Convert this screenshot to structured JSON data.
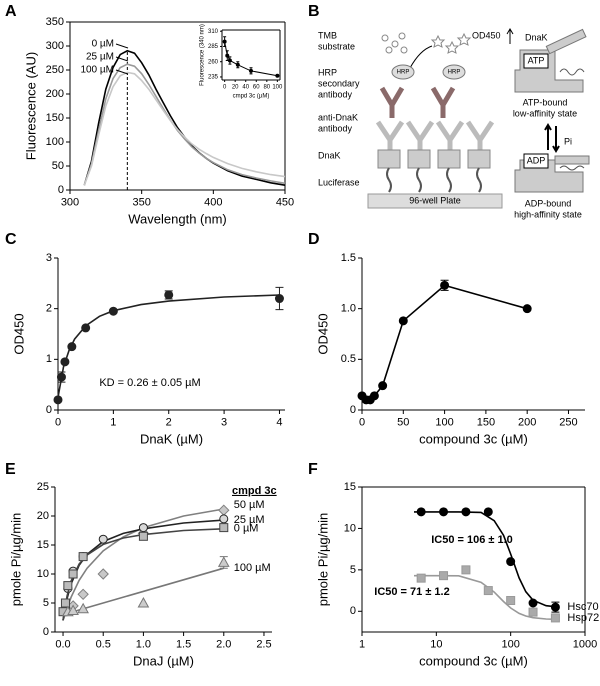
{
  "chart_data": [
    {
      "type": "line",
      "panel": "A",
      "xlabel": "Wavelength (nm)",
      "ylabel": "Fluorescence (AU)",
      "xlim": [
        300,
        450
      ],
      "ylim": [
        0,
        350
      ],
      "xticks": [
        300,
        350,
        400,
        450
      ],
      "yticks": [
        0,
        50,
        100,
        150,
        200,
        250,
        300,
        350
      ],
      "frame": true,
      "vline": 340,
      "legend": "left",
      "x": [
        310,
        315,
        320,
        325,
        330,
        335,
        340,
        345,
        350,
        355,
        360,
        365,
        370,
        375,
        380,
        385,
        390,
        395,
        400,
        410,
        420,
        430,
        440,
        450
      ],
      "series": [
        {
          "name": "0 µM",
          "color": "#000000",
          "values": [
            10,
            60,
            140,
            210,
            255,
            282,
            290,
            285,
            265,
            240,
            210,
            182,
            155,
            130,
            110,
            92,
            78,
            66,
            56,
            40,
            29,
            22,
            15,
            10
          ]
        },
        {
          "name": "25 µM",
          "color": "#999999",
          "values": [
            10,
            55,
            125,
            190,
            232,
            255,
            262,
            258,
            242,
            220,
            195,
            170,
            146,
            124,
            106,
            90,
            77,
            66,
            57,
            42,
            32,
            25,
            19,
            14
          ]
        },
        {
          "name": "100 µM",
          "color": "#c8c8c8",
          "values": [
            10,
            50,
            115,
            175,
            215,
            238,
            245,
            242,
            228,
            210,
            188,
            166,
            145,
            126,
            110,
            96,
            85,
            76,
            68,
            55,
            45,
            38,
            32,
            28
          ]
        }
      ],
      "inset": {
        "type": "scatter",
        "xlabel": "cmpd 3c (µM)",
        "ylabel": "Fluorescence (340 nm)",
        "xlim": [
          -5,
          105
        ],
        "ylim": [
          230,
          312
        ],
        "xticks": [
          0,
          20,
          40,
          60,
          80,
          100
        ],
        "yticks": [
          235,
          260,
          285,
          310
        ],
        "frame": true,
        "series": [
          {
            "color": "#000000",
            "marker": "circle",
            "line": true,
            "x": [
              0,
              5,
              10,
              25,
              50,
              100
            ],
            "values": [
              293,
              270,
              262,
              255,
              245,
              237
            ],
            "errors": [
              8,
              8,
              6,
              5,
              5,
              null
            ]
          }
        ]
      }
    },
    {
      "type": "scatter",
      "panel": "C",
      "xlabel": "DnaK (µM)",
      "ylabel": "OD450",
      "xlim": [
        0,
        4.1
      ],
      "ylim": [
        0,
        3
      ],
      "xticks": [
        0,
        1,
        2,
        3,
        4
      ],
      "yticks": [
        0,
        1,
        2,
        3
      ],
      "annotations": [
        {
          "text": "KD = 0.26 ± 0.05 µM",
          "color": "#000000"
        }
      ],
      "series": [
        {
          "color": "#222222",
          "marker": "circle",
          "x": [
            0,
            0.0625,
            0.125,
            0.25,
            0.5,
            1,
            2,
            4
          ],
          "values": [
            0.2,
            0.65,
            0.95,
            1.25,
            1.62,
            1.95,
            2.27,
            2.2
          ],
          "errors": [
            null,
            0.1,
            null,
            null,
            null,
            null,
            0.08,
            0.22
          ],
          "fit": {
            "x": [
              0,
              0.1,
              0.2,
              0.3,
              0.5,
              0.75,
              1,
              1.5,
              2,
              3,
              4
            ],
            "y": [
              0.25,
              0.85,
              1.18,
              1.4,
              1.66,
              1.85,
              1.96,
              2.08,
              2.15,
              2.23,
              2.27
            ]
          }
        }
      ]
    },
    {
      "type": "scatter",
      "panel": "D",
      "xlabel": "compound 3c (µM)",
      "ylabel": "OD450",
      "xlim": [
        0,
        270
      ],
      "ylim": [
        0,
        1.5
      ],
      "xticks": [
        0,
        50,
        100,
        150,
        200,
        250
      ],
      "yticks": [
        0,
        0.5,
        {
          "value": 1,
          "label": "1.0"
        },
        1.5
      ],
      "series": [
        {
          "color": "#000000",
          "marker": "circle",
          "line": true,
          "x": [
            0,
            5,
            10,
            15,
            25,
            50,
            100,
            200
          ],
          "values": [
            0.14,
            0.1,
            0.1,
            0.14,
            0.24,
            0.88,
            1.23,
            1.0
          ],
          "errors": [
            null,
            null,
            null,
            null,
            null,
            null,
            0.05,
            null
          ]
        }
      ]
    },
    {
      "type": "scatter",
      "panel": "E",
      "xlabel": "DnaJ (µM)",
      "ylabel": "pmole Pi/µg/min",
      "xlim": [
        -0.1,
        2.6
      ],
      "ylim": [
        0,
        25
      ],
      "xticks": [
        {
          "value": 0,
          "label": "0.0"
        },
        0.5,
        {
          "value": 1,
          "label": "1.0"
        },
        1.5,
        {
          "value": 2,
          "label": "2.0"
        },
        2.5
      ],
      "yticks": [
        0,
        5,
        10,
        15,
        20,
        25
      ],
      "legend_title": "cmpd 3c",
      "legend": "end",
      "series": [
        {
          "name": "50 µM",
          "color": "#808080",
          "fill": "#c8c8c8",
          "marker": "diamond",
          "x": [
            0.125,
            0.25,
            0.5,
            1,
            2
          ],
          "values": [
            4.5,
            6.5,
            10,
            17,
            21
          ],
          "fit": {
            "x": [
              0,
              0.1,
              0.2,
              0.3,
              0.5,
              0.75,
              1,
              1.5,
              2
            ],
            "y": [
              2,
              6,
              8.9,
              11,
              14,
              16.4,
              18,
              20,
              21.2
            ]
          }
        },
        {
          "name": "25 µM",
          "color": "#222222",
          "fill": "#d8d8d8",
          "marker": "circle",
          "x": [
            0.03,
            0.06,
            0.125,
            0.25,
            0.5,
            1,
            2
          ],
          "values": [
            4,
            7.5,
            10.5,
            13,
            16,
            18,
            19.5
          ],
          "fit": {
            "x": [
              0,
              0.05,
              0.1,
              0.2,
              0.3,
              0.5,
              0.75,
              1,
              1.5,
              2
            ],
            "y": [
              2,
              5.8,
              8.3,
              11.5,
              13.4,
              15.6,
              17,
              17.8,
              18.8,
              19.3
            ]
          }
        },
        {
          "name": "0 µM",
          "color": "#444444",
          "fill": "#bbbbbb",
          "marker": "square",
          "x": [
            0,
            0.03,
            0.06,
            0.125,
            0.25,
            1,
            2
          ],
          "values": [
            3.5,
            5,
            8,
            10,
            13,
            16.5,
            18
          ],
          "fit": {
            "x": [
              0,
              0.05,
              0.1,
              0.2,
              0.3,
              0.5,
              0.75,
              1,
              1.5,
              2
            ],
            "y": [
              2,
              6.25,
              8.8,
              11.7,
              13.3,
              15.1,
              16.2,
              16.8,
              17.5,
              17.8
            ]
          }
        },
        {
          "name": "100 µM",
          "color": "#777777",
          "fill": "#cccccc",
          "marker": "triangle",
          "x": [
            0.06,
            0.125,
            0.25,
            1,
            2
          ],
          "values": [
            3.5,
            3.7,
            4,
            5,
            12
          ],
          "errors": [
            null,
            null,
            null,
            null,
            1
          ],
          "fit": {
            "x": [
              0,
              2
            ],
            "y": [
              3,
              11
            ]
          }
        }
      ]
    },
    {
      "type": "scatter",
      "panel": "F",
      "xlabel": "compound 3c (µM)",
      "ylabel": "pmole Pi/µg/min",
      "xscale": "log",
      "xlim": [
        1,
        1000
      ],
      "ylim": [
        -2.5,
        15
      ],
      "xticks": [
        1,
        10,
        100,
        1000
      ],
      "yticks": [
        0,
        5,
        10,
        15
      ],
      "frame": true,
      "legend": "end",
      "annotations": [
        {
          "text": "IC50 = 106 ± 1.0",
          "color": "#000000"
        },
        {
          "text": "IC50 = 71 ± 1.2",
          "color": "#999999"
        }
      ],
      "series": [
        {
          "name": "Hsc70",
          "color": "#000000",
          "fill": "#000000",
          "marker": "circle",
          "x": [
            6.25,
            12.5,
            25,
            50,
            100,
            200,
            400
          ],
          "values": [
            12,
            12,
            12,
            12,
            6,
            1,
            0.5
          ],
          "errors": [
            null,
            null,
            null,
            null,
            null,
            null,
            0.6
          ],
          "fit": {
            "x": [
              5,
              10,
              20,
              40,
              60,
              80,
              100,
              130,
              160,
              200,
              300,
              400
            ],
            "y": [
              12,
              12,
              12,
              11.93,
              10.93,
              9.18,
              6.9,
              4.03,
              2.36,
              1.34,
              0.68,
              0.55
            ]
          }
        },
        {
          "name": "Hsp72",
          "color": "#999999",
          "fill": "#aaaaaa",
          "marker": "square",
          "x": [
            6.25,
            12.5,
            25,
            50,
            100,
            200,
            400
          ],
          "values": [
            4,
            4.3,
            5,
            2.5,
            1.3,
            -0.1,
            -0.8
          ],
          "fit": {
            "x": [
              5,
              10,
              20,
              40,
              60,
              80,
              100,
              130,
              160,
              200,
              300,
              400
            ],
            "y": [
              4.3,
              4.3,
              4.28,
              3.5,
              2.31,
              1.18,
              0.4,
              -0.26,
              -0.57,
              -0.77,
              -0.93,
              -0.97
            ]
          }
        }
      ]
    }
  ],
  "diagram": {
    "panel": "B",
    "tmb": [
      "TMB",
      "substrate"
    ],
    "od": "OD450",
    "hrp_antibody": [
      "HRP",
      "secondary",
      "antibody"
    ],
    "anti_dnak": [
      "anti-DnaK",
      "antibody"
    ],
    "dnak": "DnaK",
    "luciferase": "Luciferase",
    "plate": "96-well Plate",
    "hrp": "HRP",
    "state_dnak": "DnaK",
    "atp": "ATP",
    "atp_state": [
      "ATP-bound",
      "low-affinity state"
    ],
    "pi": "Pi",
    "adp": "ADP",
    "adp_state": [
      "ADP-bound",
      "high-affinity state"
    ]
  }
}
